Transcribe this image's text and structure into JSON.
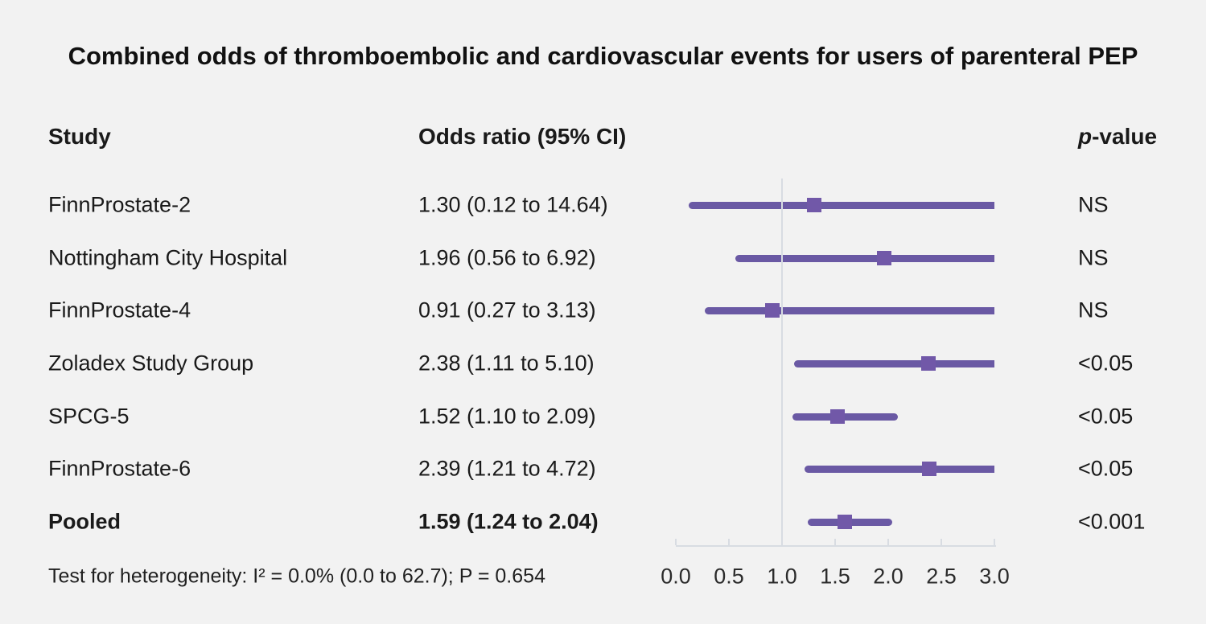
{
  "chart_data": {
    "type": "scatter",
    "subtype": "forest-plot",
    "title": "Combined odds of thromboembolic and cardiovascular events for users of parenteral PEP",
    "columns": {
      "study": "Study",
      "odds_ratio": "Odds ratio (95% CI)",
      "p_italic": "p",
      "p_rest": "-value"
    },
    "x_axis": {
      "min": 0.0,
      "max": 3.0,
      "tick_step": 0.5,
      "tick_labels": [
        "0.0",
        "0.5",
        "1.0",
        "1.5",
        "2.0",
        "2.5",
        "3.0"
      ],
      "reference_line": 1.0,
      "grid": false,
      "note": "confidence interval lines truncated at 3.0"
    },
    "studies": [
      {
        "name": "FinnProstate-2",
        "or": 1.3,
        "ci_low": 0.12,
        "ci_high": 14.64,
        "or_label": "1.30 (0.12 to 14.64)",
        "p": "NS",
        "bold": false
      },
      {
        "name": "Nottingham City Hospital",
        "or": 1.96,
        "ci_low": 0.56,
        "ci_high": 6.92,
        "or_label": "1.96 (0.56 to 6.92)",
        "p": "NS",
        "bold": false
      },
      {
        "name": "FinnProstate-4",
        "or": 0.91,
        "ci_low": 0.27,
        "ci_high": 3.13,
        "or_label": "0.91 (0.27 to 3.13)",
        "p": "NS",
        "bold": false
      },
      {
        "name": "Zoladex Study Group",
        "or": 2.38,
        "ci_low": 1.11,
        "ci_high": 5.1,
        "or_label": "2.38 (1.11 to 5.10)",
        "p": "<0.05",
        "bold": false
      },
      {
        "name": "SPCG-5",
        "or": 1.52,
        "ci_low": 1.1,
        "ci_high": 2.09,
        "or_label": "1.52 (1.10 to 2.09)",
        "p": "<0.05",
        "bold": false
      },
      {
        "name": "FinnProstate-6",
        "or": 2.39,
        "ci_low": 1.21,
        "ci_high": 4.72,
        "or_label": "2.39 (1.21 to 4.72)",
        "p": "<0.05",
        "bold": false
      },
      {
        "name": "Pooled",
        "or": 1.59,
        "ci_low": 1.24,
        "ci_high": 2.04,
        "or_label": "1.59 (1.24 to 2.04)",
        "p": "<0.001",
        "bold": true
      }
    ],
    "footnote": "Test for heterogeneity: I² = 0.0% (0.0 to 62.7); P = 0.654",
    "colors": {
      "ci_line": "#6a59a4",
      "marker": "#7158a8",
      "axis": "#d8dce2",
      "text": "#1a1a1a",
      "background": "#f2f2f2"
    }
  }
}
